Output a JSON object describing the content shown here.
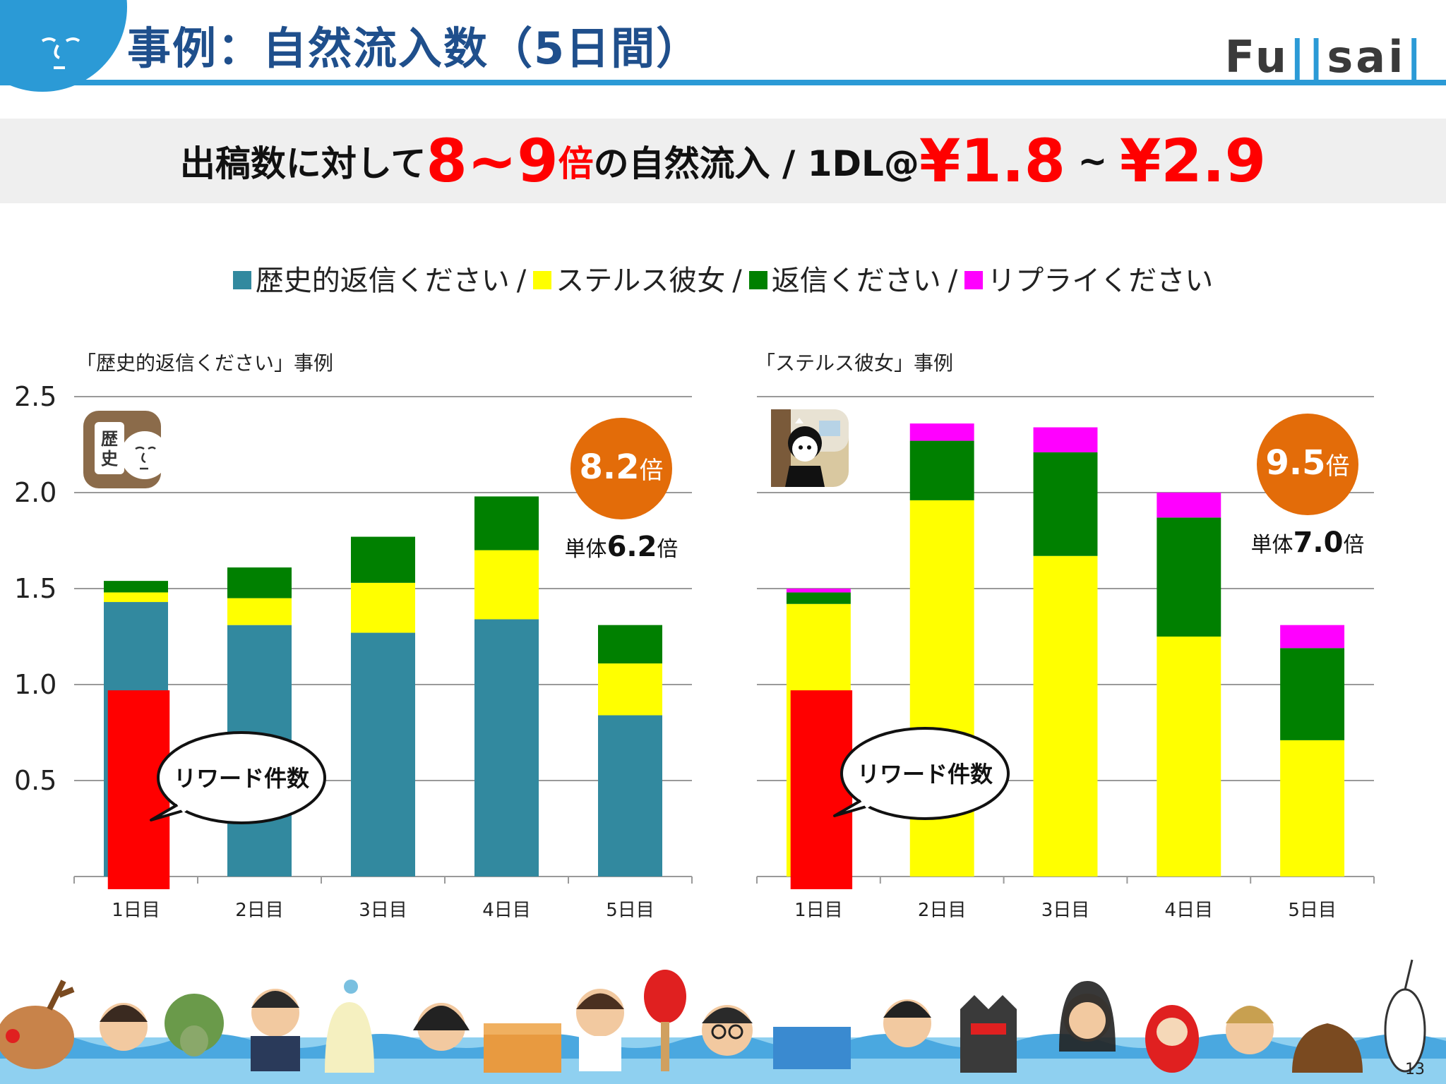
{
  "header": {
    "title": "事例：自然流入数（5日間）",
    "logo": [
      "Fu",
      "||",
      "sai",
      "|"
    ]
  },
  "headline": {
    "part1": "出稿数に対して",
    "multiplier": "8~9",
    "part2": "倍",
    "part3": "の自然流入 / 1DL@",
    "cost_low": "¥1.8",
    "tilde": " ~ ",
    "cost_high": "¥2.9"
  },
  "legend": {
    "items": [
      "歴史的返信ください",
      "ステルス彼女",
      "返信ください",
      "リプライください"
    ],
    "separator": "/"
  },
  "colors": {
    "teal": "#32899f",
    "yellow": "#ffff00",
    "green": "#008000",
    "magenta": "#ff00ff",
    "red": "#ff0000",
    "orange": "#e36c09",
    "brand_blue": "#2b9ad6"
  },
  "charts": {
    "yticks": [
      "2.5",
      "2.0",
      "1.5",
      "1.0",
      "0.5"
    ],
    "reward_label": "リワード件数",
    "left": {
      "caption": "「歴史的返信ください」事例",
      "icon_text": [
        "歴",
        "史"
      ],
      "badge": "8.2",
      "badge_unit": "倍",
      "sub_prefix": "単体",
      "sub_value": "6.2",
      "sub_unit": "倍"
    },
    "right": {
      "caption": "「ステルス彼女」事例",
      "badge": "9.5",
      "badge_unit": "倍",
      "sub_prefix": "単体",
      "sub_value": "7.0",
      "sub_unit": "倍"
    }
  },
  "chart_data": [
    {
      "type": "bar",
      "stacked": true,
      "title": "「歴史的返信ください」事例",
      "categories": [
        "1日目",
        "2日目",
        "3日目",
        "4日目",
        "5日目"
      ],
      "ylim": [
        0,
        2.5
      ],
      "yticks": [
        0.5,
        1.0,
        1.5,
        2.0,
        2.5
      ],
      "grid": true,
      "series": [
        {
          "name": "歴史的返信ください",
          "color": "#32899f",
          "values": [
            1.43,
            1.31,
            1.27,
            1.34,
            0.84
          ]
        },
        {
          "name": "ステルス彼女",
          "color": "#ffff00",
          "values": [
            0.05,
            0.14,
            0.26,
            0.36,
            0.27
          ]
        },
        {
          "name": "返信ください",
          "color": "#008000",
          "values": [
            0.06,
            0.16,
            0.24,
            0.28,
            0.2
          ]
        },
        {
          "name": "リプライください",
          "color": "#ff00ff",
          "values": [
            0,
            0,
            0,
            0,
            0
          ]
        }
      ],
      "reward": {
        "category": "1日目",
        "value": 0.97,
        "color": "#ff0000"
      },
      "annotations": [
        "リワード件数",
        "8.2倍",
        "単体6.2倍"
      ]
    },
    {
      "type": "bar",
      "stacked": true,
      "title": "「ステルス彼女」事例",
      "categories": [
        "1日目",
        "2日目",
        "3日目",
        "4日目",
        "5日目"
      ],
      "ylim": [
        0,
        2.5
      ],
      "yticks": [
        0.5,
        1.0,
        1.5,
        2.0,
        2.5
      ],
      "grid": true,
      "series": [
        {
          "name": "歴史的返信ください",
          "color": "#32899f",
          "values": [
            0,
            0,
            0,
            0,
            0
          ]
        },
        {
          "name": "ステルス彼女",
          "color": "#ffff00",
          "values": [
            1.42,
            1.96,
            1.67,
            1.25,
            0.71
          ]
        },
        {
          "name": "返信ください",
          "color": "#008000",
          "values": [
            0.06,
            0.31,
            0.54,
            0.62,
            0.48
          ]
        },
        {
          "name": "リプライください",
          "color": "#ff00ff",
          "values": [
            0.02,
            0.09,
            0.13,
            0.13,
            0.12
          ]
        }
      ],
      "reward": {
        "category": "1日目",
        "value": 0.97,
        "color": "#ff0000"
      },
      "annotations": [
        "リワード件数",
        "9.5倍",
        "単体7.0倍"
      ]
    }
  ],
  "page_number": "13"
}
